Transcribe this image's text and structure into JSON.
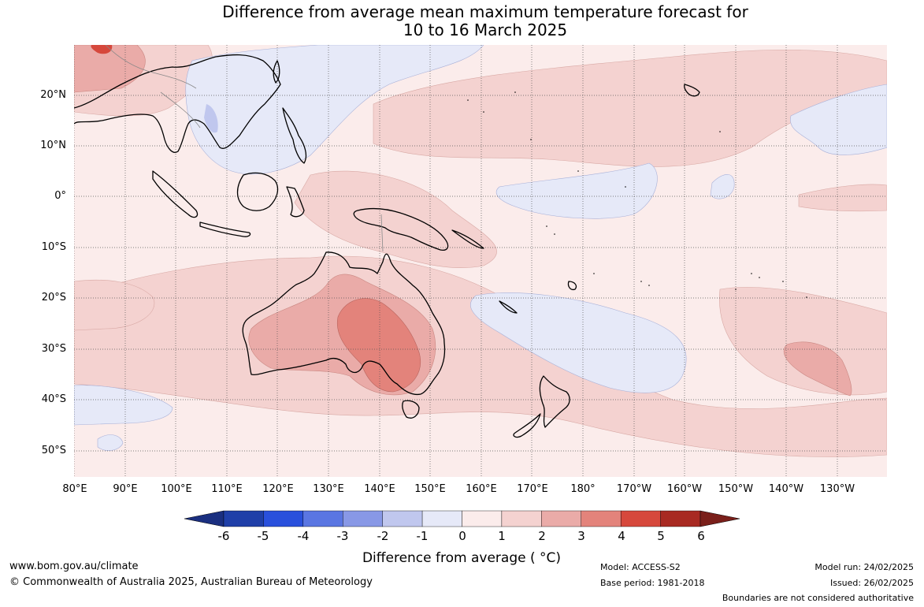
{
  "title": {
    "line1": "Difference from average mean maximum temperature forecast for",
    "line2": "10 to 16 March 2025"
  },
  "map": {
    "lat_labels": [
      "20°N",
      "10°N",
      "0°",
      "10°S",
      "20°S",
      "30°S",
      "40°S",
      "50°S"
    ],
    "lon_labels": [
      "80°E",
      "90°E",
      "100°E",
      "110°E",
      "120°E",
      "130°E",
      "140°E",
      "150°E",
      "160°E",
      "170°E",
      "180°",
      "170°W",
      "160°W",
      "150°W",
      "140°W",
      "130°W"
    ],
    "region": "Australia and western Pacific",
    "palette": {
      "ocean_neutral": "#fbeceb",
      "warm_1_2": "#f4d2d0",
      "warm_2_3": "#eaaba8",
      "warm_3_4": "#e3837b",
      "warm_4_5": "#d6483c",
      "cool_0_-1": "#e6e9f8",
      "cool_-1_-2": "#c0c7ee",
      "coastline": "#000000",
      "borders": "#888888"
    }
  },
  "colorbar": {
    "ticks": [
      "-6",
      "-5",
      "-4",
      "-3",
      "-2",
      "-1",
      "0",
      "1",
      "2",
      "3",
      "4",
      "5",
      "6"
    ],
    "colors": [
      "#1f3fa8",
      "#2950dc",
      "#5a76e2",
      "#8898e6",
      "#c0c7ee",
      "#e6e9f8",
      "#fbeceb",
      "#f4d2d0",
      "#eaaba8",
      "#e3837b",
      "#d6483c",
      "#a82a22"
    ],
    "low_extend_color": "#1a2f80",
    "high_extend_color": "#7a1f1a",
    "label": "Difference from average ( °C)"
  },
  "footer": {
    "website": "www.bom.gov.au/climate",
    "copyright": "© Commonwealth of Australia 2025, Australian Bureau of Meteorology",
    "model": "Model: ACCESS-S2",
    "base_period": "Base period: 1981-2018",
    "model_run": "Model run: 24/02/2025",
    "issued": "Issued: 26/02/2025",
    "boundaries_note": "Boundaries are not considered authoritative"
  }
}
